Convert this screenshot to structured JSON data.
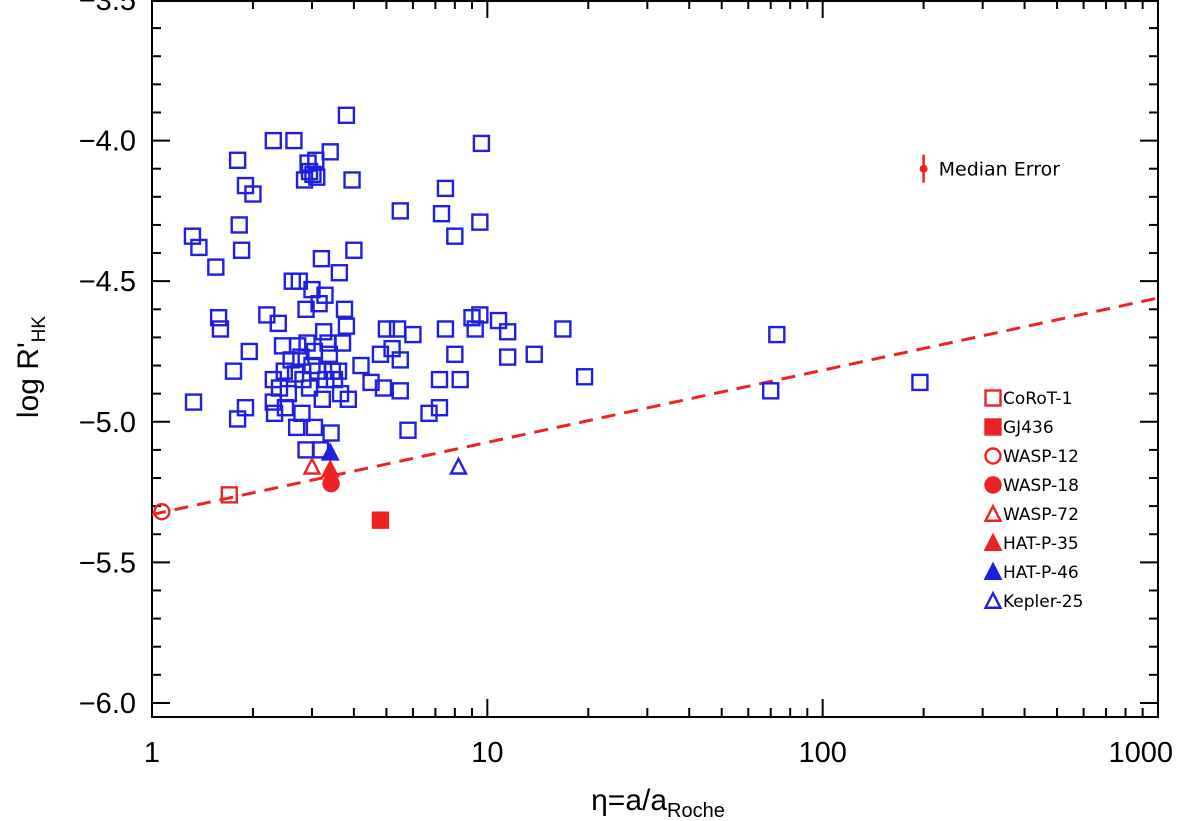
{
  "chart_data": {
    "type": "scatter",
    "xscale": "log",
    "xlim": [
      1,
      1000
    ],
    "ylim": [
      -6.05,
      -3.5
    ],
    "xlabel": {
      "main": "η=a/a",
      "sub": "Roche"
    },
    "ylabel": {
      "main": "log R'",
      "sub": "HK"
    },
    "xticks": [
      1,
      10,
      100,
      1000
    ],
    "xtick_labels": [
      "1",
      "10",
      "100",
      "1000"
    ],
    "yticks": [
      -6.0,
      -5.5,
      -5.0,
      -4.5,
      -4.0,
      -3.5
    ],
    "ytick_labels": [
      "−6.0",
      "−5.5",
      "−5.0",
      "−4.5",
      "−4.0",
      "−3.5"
    ],
    "grid": false,
    "legend_position": "lower-right",
    "fit_line": {
      "style": "dashed",
      "color": "#ee2222",
      "points": [
        [
          1,
          -5.33
        ],
        [
          1000,
          -4.56
        ]
      ]
    },
    "annotation": {
      "label": "Median Error",
      "x": 200,
      "y": -4.1,
      "err": 0.05,
      "color": "#ee2222"
    },
    "series": [
      {
        "name": "",
        "marker": "square-open",
        "color": "#1f1fe0",
        "points": [
          [
            1.32,
            -4.34
          ],
          [
            1.38,
            -4.38
          ],
          [
            1.33,
            -4.93
          ],
          [
            1.55,
            -4.45
          ],
          [
            1.58,
            -4.63
          ],
          [
            1.6,
            -4.67
          ],
          [
            1.75,
            -4.82
          ],
          [
            1.8,
            -4.07
          ],
          [
            1.82,
            -4.3
          ],
          [
            1.85,
            -4.39
          ],
          [
            1.8,
            -4.99
          ],
          [
            1.9,
            -4.16
          ],
          [
            1.9,
            -4.95
          ],
          [
            2.0,
            -4.19
          ],
          [
            1.95,
            -4.75
          ],
          [
            2.2,
            -4.62
          ],
          [
            2.3,
            -4.0
          ],
          [
            2.3,
            -4.85
          ],
          [
            2.3,
            -4.93
          ],
          [
            2.32,
            -4.97
          ],
          [
            2.38,
            -4.65
          ],
          [
            2.4,
            -4.88
          ],
          [
            2.45,
            -4.73
          ],
          [
            2.48,
            -4.82
          ],
          [
            2.5,
            -4.95
          ],
          [
            2.55,
            -4.9
          ],
          [
            2.6,
            -4.78
          ],
          [
            2.62,
            -4.5
          ],
          [
            2.65,
            -4.0
          ],
          [
            2.68,
            -4.83
          ],
          [
            2.7,
            -5.02
          ],
          [
            2.72,
            -4.73
          ],
          [
            2.75,
            -4.5
          ],
          [
            2.78,
            -4.77
          ],
          [
            2.8,
            -4.97
          ],
          [
            2.82,
            -4.85
          ],
          [
            2.85,
            -4.14
          ],
          [
            2.88,
            -5.1
          ],
          [
            2.88,
            -4.6
          ],
          [
            2.9,
            -4.72
          ],
          [
            2.92,
            -4.08
          ],
          [
            2.95,
            -4.88
          ],
          [
            2.95,
            -4.11
          ],
          [
            3.0,
            -4.53
          ],
          [
            3.0,
            -4.8
          ],
          [
            3.02,
            -4.12
          ],
          [
            3.05,
            -5.02
          ],
          [
            3.05,
            -4.75
          ],
          [
            3.08,
            -4.07
          ],
          [
            3.1,
            -4.13
          ],
          [
            3.12,
            -4.82
          ],
          [
            3.15,
            -4.58
          ],
          [
            3.18,
            -5.1
          ],
          [
            3.2,
            -4.42
          ],
          [
            3.22,
            -4.92
          ],
          [
            3.25,
            -4.68
          ],
          [
            3.28,
            -4.55
          ],
          [
            3.3,
            -4.85
          ],
          [
            3.35,
            -4.72
          ],
          [
            3.38,
            -4.76
          ],
          [
            3.4,
            -4.04
          ],
          [
            3.42,
            -5.04
          ],
          [
            3.45,
            -4.82
          ],
          [
            3.5,
            -4.85
          ],
          [
            3.6,
            -4.82
          ],
          [
            3.62,
            -4.47
          ],
          [
            3.65,
            -4.9
          ],
          [
            3.7,
            -4.72
          ],
          [
            3.75,
            -4.6
          ],
          [
            3.8,
            -4.66
          ],
          [
            3.8,
            -3.91
          ],
          [
            3.85,
            -4.92
          ],
          [
            3.95,
            -4.14
          ],
          [
            4.0,
            -4.39
          ],
          [
            4.2,
            -4.8
          ],
          [
            4.5,
            -4.86
          ],
          [
            4.8,
            -4.76
          ],
          [
            4.9,
            -4.88
          ],
          [
            5.0,
            -4.67
          ],
          [
            5.2,
            -4.74
          ],
          [
            5.4,
            -4.67
          ],
          [
            5.5,
            -4.25
          ],
          [
            5.5,
            -4.78
          ],
          [
            5.5,
            -4.89
          ],
          [
            5.8,
            -5.03
          ],
          [
            6.0,
            -4.69
          ],
          [
            6.7,
            -4.97
          ],
          [
            7.2,
            -4.85
          ],
          [
            7.2,
            -4.95
          ],
          [
            7.3,
            -4.26
          ],
          [
            7.5,
            -4.17
          ],
          [
            7.5,
            -4.67
          ],
          [
            8.0,
            -4.34
          ],
          [
            8.0,
            -4.76
          ],
          [
            8.3,
            -4.85
          ],
          [
            9.0,
            -4.63
          ],
          [
            9.2,
            -4.67
          ],
          [
            9.5,
            -4.62
          ],
          [
            9.5,
            -4.29
          ],
          [
            9.6,
            -4.01
          ],
          [
            10.8,
            -4.64
          ],
          [
            11.5,
            -4.68
          ],
          [
            11.5,
            -4.77
          ],
          [
            13.8,
            -4.76
          ],
          [
            16.8,
            -4.67
          ],
          [
            19.5,
            -4.84
          ],
          [
            70,
            -4.89
          ],
          [
            73,
            -4.69
          ],
          [
            195,
            -4.86
          ]
        ]
      },
      {
        "name": "CoRoT-1",
        "marker": "square-open",
        "color": "#ee2222",
        "points": [
          [
            1.7,
            -5.26
          ]
        ]
      },
      {
        "name": "GJ436",
        "marker": "square-filled",
        "color": "#ee2222",
        "points": [
          [
            4.8,
            -5.35
          ]
        ]
      },
      {
        "name": "WASP-12",
        "marker": "circle-open",
        "color": "#ee2222",
        "points": [
          [
            1.07,
            -5.32
          ]
        ]
      },
      {
        "name": "WASP-18",
        "marker": "circle-filled",
        "color": "#ee2222",
        "points": [
          [
            3.42,
            -5.22
          ]
        ]
      },
      {
        "name": "WASP-72",
        "marker": "triangle-open",
        "color": "#ee2222",
        "points": [
          [
            3.0,
            -5.16
          ]
        ]
      },
      {
        "name": "HAT-P-35",
        "marker": "triangle-filled",
        "color": "#ee2222",
        "points": [
          [
            3.4,
            -5.17
          ]
        ]
      },
      {
        "name": "HAT-P-46",
        "marker": "triangle-filled",
        "color": "#1f1fe0",
        "points": [
          [
            3.4,
            -5.11
          ]
        ]
      },
      {
        "name": "Kepler-25",
        "marker": "triangle-open",
        "color": "#1f1fe0",
        "points": [
          [
            8.2,
            -5.16
          ]
        ]
      }
    ]
  }
}
